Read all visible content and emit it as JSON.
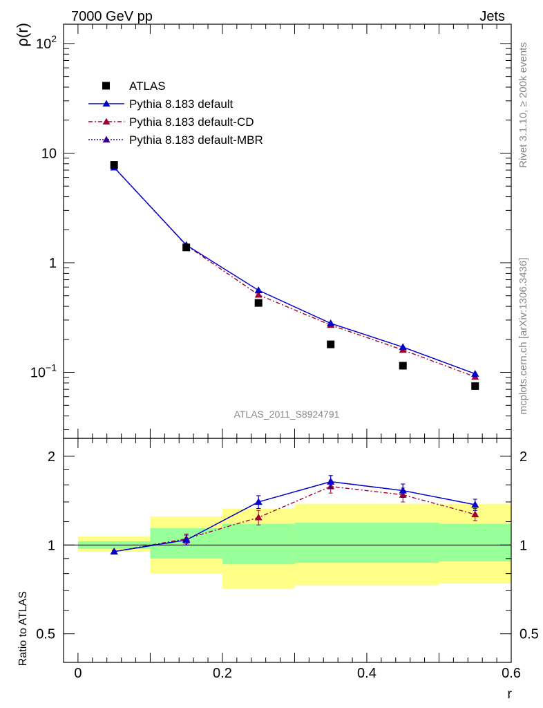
{
  "header": {
    "left": "7000 GeV pp",
    "right": "Jets"
  },
  "side": {
    "rivet": "Rivet 3.1.10, ≥ 200k events",
    "mcplots": "mcplots.cern.ch [arXiv:1306.3436]"
  },
  "analysis_label": "ATLAS_2011_S8924791",
  "colors": {
    "atlas": "#000000",
    "default": "#0000cc",
    "cd": "#a00030",
    "mbr": "#3a0099",
    "band_outer": "#ffff88",
    "band_inner": "#99ff99"
  },
  "chart_data": [
    {
      "type": "line",
      "title": "",
      "xlabel": "r",
      "ylabel": "ρ(r)",
      "yscale": "log",
      "xlim": [
        -0.02,
        0.6
      ],
      "ylim": [
        0.025,
        150
      ],
      "yticks": [
        {
          "value": 100,
          "base": "10",
          "exp": "2"
        },
        {
          "value": 10,
          "base": "10",
          "exp": ""
        },
        {
          "value": 1,
          "base": "1",
          "exp": ""
        },
        {
          "value": 0.1,
          "base": "10",
          "exp": "−1"
        }
      ],
      "series": [
        {
          "name": "ATLAS",
          "x": [
            0.05,
            0.15,
            0.25,
            0.35,
            0.45,
            0.55
          ],
          "values": [
            7.8,
            1.38,
            0.43,
            0.18,
            0.115,
            0.075
          ]
        },
        {
          "name": "Pythia 8.183 default",
          "x": [
            0.05,
            0.15,
            0.25,
            0.35,
            0.45,
            0.55
          ],
          "values": [
            7.4,
            1.45,
            0.56,
            0.28,
            0.17,
            0.097
          ]
        },
        {
          "name": "Pythia 8.183 default-CD",
          "x": [
            0.05,
            0.15,
            0.25,
            0.35,
            0.45,
            0.55
          ],
          "values": [
            7.4,
            1.44,
            0.51,
            0.27,
            0.16,
            0.091
          ]
        },
        {
          "name": "Pythia 8.183 default-MBR",
          "x": [
            0.05,
            0.15,
            0.25,
            0.35,
            0.45,
            0.55
          ],
          "values": [
            7.4,
            1.45,
            0.56,
            0.28,
            0.17,
            0.097
          ]
        }
      ]
    },
    {
      "type": "line",
      "xlabel": "r",
      "ylabel": "Ratio to ATLAS",
      "xlim": [
        -0.02,
        0.6
      ],
      "ylim": [
        0.4,
        2.3
      ],
      "xticks": [
        "0",
        "0.2",
        "0.4",
        "0.6"
      ],
      "yticks": [
        "0.5",
        "1",
        "2"
      ],
      "bands": [
        {
          "x0": 0.0,
          "x1": 0.1,
          "inner": [
            0.97,
            1.03
          ],
          "outer": [
            0.95,
            1.07
          ]
        },
        {
          "x0": 0.1,
          "x1": 0.2,
          "inner": [
            0.9,
            1.14
          ],
          "outer": [
            0.8,
            1.25
          ]
        },
        {
          "x0": 0.2,
          "x1": 0.3,
          "inner": [
            0.86,
            1.18
          ],
          "outer": [
            0.71,
            1.33
          ]
        },
        {
          "x0": 0.3,
          "x1": 0.5,
          "inner": [
            0.87,
            1.19
          ],
          "outer": [
            0.73,
            1.38
          ]
        },
        {
          "x0": 0.5,
          "x1": 0.6,
          "inner": [
            0.88,
            1.18
          ],
          "outer": [
            0.74,
            1.38
          ]
        }
      ],
      "series": [
        {
          "name": "Pythia 8.183 default",
          "x": [
            0.05,
            0.15,
            0.25,
            0.35,
            0.45,
            0.55
          ],
          "values": [
            0.95,
            1.04,
            1.4,
            1.64,
            1.53,
            1.37
          ],
          "err": [
            0.01,
            0.04,
            0.07,
            0.08,
            0.08,
            0.06
          ]
        },
        {
          "name": "Pythia 8.183 default-CD",
          "x": [
            0.05,
            0.15,
            0.25,
            0.35,
            0.45,
            0.55
          ],
          "values": [
            0.95,
            1.05,
            1.24,
            1.58,
            1.48,
            1.27
          ],
          "err": [
            0.01,
            0.04,
            0.07,
            0.08,
            0.08,
            0.06
          ]
        },
        {
          "name": "Pythia 8.183 default-MBR",
          "x": [
            0.05,
            0.15,
            0.25,
            0.35,
            0.45,
            0.55
          ],
          "values": [
            0.95,
            1.04,
            1.4,
            1.64,
            1.53,
            1.37
          ],
          "err": [
            0.01,
            0.04,
            0.07,
            0.08,
            0.08,
            0.06
          ]
        }
      ]
    }
  ]
}
